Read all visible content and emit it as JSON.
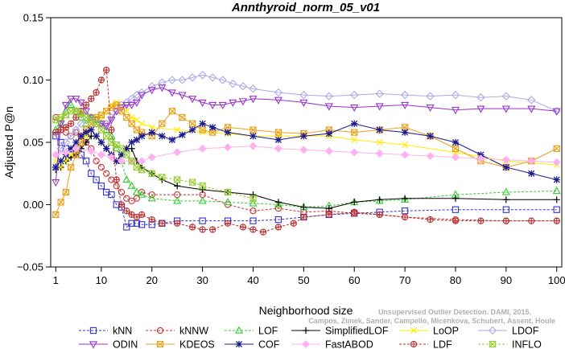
{
  "chart_data": {
    "type": "line",
    "title": "Annthyroid_norm_05_v01",
    "xlabel": "Neighborhood size",
    "ylabel": "Adjusted P@n",
    "xlim": [
      0,
      101
    ],
    "ylim": [
      -0.05,
      0.15
    ],
    "xticks": [
      1,
      10,
      20,
      30,
      40,
      50,
      60,
      70,
      80,
      90,
      100
    ],
    "yticks": [
      -0.05,
      0.0,
      0.05,
      0.1,
      0.15
    ],
    "ytick_labels": [
      "−0.05",
      "0.00",
      "0.05",
      "0.10",
      "0.15"
    ],
    "grid": false,
    "legend_position": "bottom",
    "credit": [
      "Unsupervised Outlier Detection. DAMI, 2015.",
      "Campos, Zimek, Sander, Campello, Micenkova, Schubert, Assent, Houle"
    ],
    "series": [
      {
        "name": "kNN",
        "color": "#3333cc",
        "marker": "square",
        "dash": true,
        "x": [
          1,
          2,
          3,
          4,
          5,
          6,
          7,
          8,
          9,
          10,
          11,
          12,
          13,
          14,
          15,
          16,
          17,
          18,
          20,
          22,
          25,
          30,
          35,
          40,
          45,
          50,
          55,
          60,
          65,
          70,
          80,
          90,
          100
        ],
        "y": [
          0.055,
          0.05,
          0.045,
          0.04,
          0.045,
          0.04,
          0.035,
          0.025,
          0.02,
          0.015,
          0.01,
          0.008,
          0.0,
          -0.002,
          -0.018,
          -0.015,
          -0.015,
          -0.016,
          -0.016,
          -0.015,
          -0.013,
          -0.013,
          -0.013,
          -0.013,
          -0.012,
          -0.01,
          -0.008,
          -0.007,
          -0.006,
          -0.005,
          -0.004,
          -0.004,
          -0.004
        ]
      },
      {
        "name": "kNNW",
        "color": "#cc3333",
        "marker": "circle",
        "dash": true,
        "x": [
          1,
          2,
          3,
          4,
          5,
          6,
          7,
          8,
          9,
          10,
          11,
          12,
          13,
          14,
          15,
          16,
          17,
          18,
          20,
          25,
          30,
          35,
          40,
          45,
          50,
          55,
          60,
          65,
          70,
          80,
          90,
          100
        ],
        "y": [
          0.07,
          0.06,
          0.058,
          0.055,
          0.058,
          0.055,
          0.05,
          0.045,
          0.035,
          0.03,
          0.025,
          0.02,
          0.015,
          0.01,
          0.005,
          0.003,
          0.005,
          0.01,
          0.008,
          0.008,
          0.008,
          0.0,
          -0.005,
          -0.003,
          -0.006,
          -0.005,
          -0.007,
          -0.008,
          -0.01,
          -0.012,
          -0.013,
          -0.013
        ]
      },
      {
        "name": "LOF",
        "color": "#33cc33",
        "marker": "triangle-up",
        "dash": true,
        "x": [
          1,
          2,
          3,
          4,
          5,
          6,
          7,
          8,
          9,
          10,
          11,
          12,
          13,
          14,
          15,
          16,
          17,
          18,
          20,
          25,
          30,
          35,
          40,
          45,
          50,
          55,
          60,
          65,
          70,
          80,
          90,
          100
        ],
        "y": [
          0.06,
          0.065,
          0.075,
          0.08,
          0.075,
          0.07,
          0.065,
          0.07,
          0.068,
          0.065,
          0.06,
          0.055,
          0.045,
          0.035,
          0.02,
          0.015,
          0.01,
          0.008,
          0.005,
          0.003,
          0.003,
          0.002,
          0.001,
          0.0,
          -0.002,
          -0.001,
          0.002,
          0.003,
          0.004,
          0.008,
          0.01,
          0.011
        ]
      },
      {
        "name": "SimplifiedLOF",
        "color": "#000000",
        "marker": "plus",
        "dash": false,
        "x": [
          1,
          2,
          3,
          4,
          5,
          6,
          7,
          8,
          9,
          10,
          11,
          12,
          13,
          14,
          15,
          16,
          17,
          18,
          20,
          22,
          25,
          30,
          35,
          40,
          45,
          50,
          55,
          60,
          65,
          70,
          80,
          90,
          100
        ],
        "y": [
          0.028,
          0.03,
          0.035,
          0.038,
          0.04,
          0.045,
          0.05,
          0.055,
          0.055,
          0.05,
          0.045,
          0.04,
          0.035,
          0.04,
          0.045,
          0.045,
          0.035,
          0.03,
          0.025,
          0.02,
          0.015,
          0.012,
          0.01,
          0.008,
          0.002,
          -0.002,
          -0.003,
          0.002,
          0.004,
          0.005,
          0.005,
          0.004,
          0.004
        ]
      },
      {
        "name": "LoOP",
        "color": "#ffee00",
        "marker": "x",
        "dash": false,
        "x": [
          1,
          2,
          3,
          4,
          5,
          6,
          7,
          8,
          9,
          10,
          11,
          12,
          13,
          14,
          15,
          16,
          17,
          18,
          20,
          25,
          30,
          35,
          40,
          45,
          50,
          55,
          60,
          65,
          70,
          80,
          90,
          100
        ],
        "y": [
          0.035,
          0.03,
          0.035,
          0.04,
          0.045,
          0.05,
          0.055,
          0.06,
          0.065,
          0.07,
          0.075,
          0.08,
          0.082,
          0.08,
          0.075,
          0.07,
          0.068,
          0.065,
          0.062,
          0.06,
          0.058,
          0.057,
          0.055,
          0.055,
          0.055,
          0.055,
          0.052,
          0.05,
          0.048,
          0.042,
          0.035,
          0.032
        ]
      },
      {
        "name": "LDOF",
        "color": "#aaaaee",
        "marker": "diamond",
        "dash": false,
        "x": [
          1,
          2,
          3,
          4,
          5,
          6,
          7,
          8,
          9,
          10,
          11,
          12,
          13,
          14,
          15,
          16,
          17,
          18,
          20,
          22,
          24,
          26,
          28,
          30,
          32,
          34,
          36,
          38,
          40,
          45,
          50,
          55,
          60,
          65,
          70,
          75,
          80,
          85,
          90,
          95,
          100
        ],
        "y": [
          0.03,
          0.045,
          0.05,
          0.055,
          0.06,
          0.065,
          0.07,
          0.068,
          0.065,
          0.063,
          0.065,
          0.07,
          0.075,
          0.08,
          0.082,
          0.085,
          0.088,
          0.09,
          0.095,
          0.098,
          0.1,
          0.1,
          0.102,
          0.104,
          0.102,
          0.1,
          0.097,
          0.095,
          0.093,
          0.09,
          0.088,
          0.087,
          0.088,
          0.089,
          0.088,
          0.087,
          0.088,
          0.086,
          0.087,
          0.084,
          0.075
        ]
      },
      {
        "name": "ODIN",
        "color": "#9933cc",
        "marker": "triangle-down",
        "dash": false,
        "x": [
          1,
          2,
          3,
          4,
          5,
          6,
          7,
          8,
          9,
          10,
          11,
          12,
          13,
          14,
          15,
          16,
          17,
          18,
          20,
          22,
          24,
          26,
          28,
          30,
          32,
          34,
          36,
          38,
          40,
          45,
          50,
          55,
          60,
          65,
          70,
          75,
          80,
          85,
          90,
          95,
          100
        ],
        "y": [
          0.018,
          0.065,
          0.08,
          0.085,
          0.085,
          0.082,
          0.075,
          0.07,
          0.068,
          0.065,
          0.063,
          0.068,
          0.075,
          0.078,
          0.08,
          0.08,
          0.082,
          0.088,
          0.092,
          0.094,
          0.09,
          0.088,
          0.085,
          0.082,
          0.08,
          0.08,
          0.082,
          0.083,
          0.085,
          0.084,
          0.082,
          0.079,
          0.078,
          0.079,
          0.08,
          0.078,
          0.076,
          0.077,
          0.077,
          0.077,
          0.075
        ]
      },
      {
        "name": "KDEOS",
        "color": "#e8a020",
        "marker": "square-x",
        "dash": false,
        "x": [
          1,
          2,
          3,
          4,
          5,
          6,
          7,
          8,
          9,
          10,
          11,
          12,
          13,
          14,
          15,
          16,
          17,
          18,
          20,
          22,
          24,
          26,
          28,
          30,
          32,
          35,
          40,
          45,
          50,
          55,
          60,
          65,
          70,
          75,
          80,
          85,
          90,
          95,
          100
        ],
        "y": [
          -0.008,
          0.002,
          0.01,
          0.03,
          0.04,
          0.05,
          0.06,
          0.065,
          0.07,
          0.072,
          0.075,
          0.078,
          0.08,
          0.075,
          0.07,
          0.065,
          0.06,
          0.058,
          0.055,
          0.065,
          0.075,
          0.07,
          0.065,
          0.06,
          0.058,
          0.062,
          0.06,
          0.058,
          0.057,
          0.06,
          0.058,
          0.06,
          0.062,
          0.055,
          0.045,
          0.035,
          0.03,
          0.035,
          0.045
        ]
      },
      {
        "name": "COF",
        "color": "#1a1a8c",
        "marker": "asterisk",
        "dash": false,
        "x": [
          1,
          2,
          3,
          4,
          5,
          6,
          7,
          8,
          9,
          10,
          11,
          12,
          13,
          14,
          15,
          16,
          17,
          18,
          20,
          22,
          24,
          26,
          28,
          30,
          32,
          35,
          40,
          45,
          50,
          55,
          60,
          65,
          70,
          75,
          80,
          85,
          90,
          95,
          100
        ],
        "y": [
          0.03,
          0.035,
          0.04,
          0.045,
          0.05,
          0.055,
          0.058,
          0.06,
          0.055,
          0.05,
          0.045,
          0.04,
          0.035,
          0.04,
          0.045,
          0.05,
          0.052,
          0.055,
          0.058,
          0.055,
          0.052,
          0.056,
          0.06,
          0.065,
          0.062,
          0.058,
          0.055,
          0.052,
          0.055,
          0.057,
          0.065,
          0.06,
          0.058,
          0.055,
          0.05,
          0.04,
          0.03,
          0.025,
          0.02
        ]
      },
      {
        "name": "FastABOD",
        "color": "#ffb0ee",
        "marker": "diamond-filled",
        "dash": false,
        "x": [
          1,
          3,
          5,
          8,
          10,
          12,
          14,
          16,
          18,
          20,
          25,
          30,
          35,
          40,
          45,
          50,
          55,
          60,
          65,
          70,
          75,
          80,
          85,
          90,
          95,
          100
        ],
        "y": [
          0.04,
          0.042,
          0.045,
          0.043,
          0.04,
          0.038,
          0.035,
          0.035,
          0.035,
          0.038,
          0.042,
          0.045,
          0.046,
          0.047,
          0.045,
          0.044,
          0.043,
          0.042,
          0.041,
          0.04,
          0.039,
          0.038,
          0.037,
          0.036,
          0.035,
          0.034
        ]
      },
      {
        "name": "LDF",
        "color": "#b83030",
        "marker": "circle-plus",
        "dash": true,
        "x": [
          1,
          2,
          3,
          4,
          5,
          6,
          7,
          8,
          9,
          10,
          11,
          12,
          13,
          14,
          15,
          16,
          17,
          18,
          20,
          22,
          25,
          28,
          30,
          32,
          35,
          38,
          40,
          42,
          45,
          48,
          50,
          55,
          60,
          65,
          70,
          75,
          80,
          85,
          90,
          95,
          100
        ],
        "y": [
          0.058,
          0.06,
          0.062,
          0.065,
          0.07,
          0.075,
          0.08,
          0.085,
          0.09,
          0.1,
          0.108,
          0.06,
          0.02,
          0.0,
          -0.005,
          -0.008,
          -0.01,
          -0.008,
          -0.012,
          -0.015,
          -0.015,
          -0.018,
          -0.02,
          -0.02,
          -0.015,
          -0.018,
          -0.02,
          -0.022,
          -0.018,
          -0.015,
          -0.01,
          -0.008,
          -0.006,
          -0.008,
          -0.01,
          -0.012,
          -0.013,
          -0.013,
          -0.013,
          -0.013,
          -0.013
        ]
      },
      {
        "name": "INFLO",
        "color": "#99cc33",
        "marker": "hourglass",
        "dash": true,
        "x": [
          1,
          2,
          3,
          4,
          5,
          6,
          7,
          8,
          9,
          10,
          11,
          12,
          13,
          14,
          15,
          16,
          17,
          18,
          20,
          22,
          25,
          28,
          30,
          35,
          40
        ],
        "y": [
          0.068,
          0.07,
          0.072,
          0.075,
          0.075,
          0.073,
          0.07,
          0.068,
          0.065,
          0.06,
          0.055,
          0.05,
          0.048,
          0.045,
          0.04,
          0.035,
          0.03,
          0.028,
          0.025,
          0.022,
          0.02,
          0.018,
          0.015,
          0.01,
          0.005
        ]
      }
    ]
  }
}
